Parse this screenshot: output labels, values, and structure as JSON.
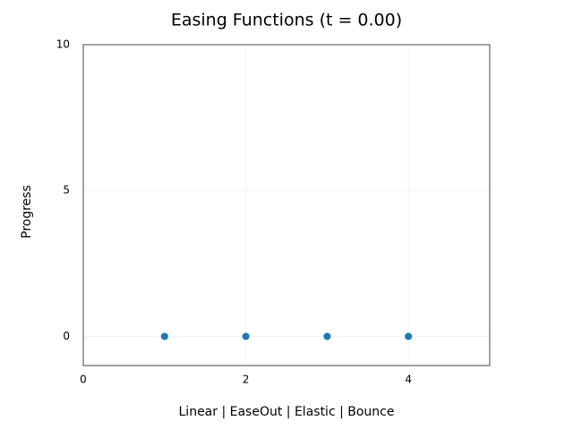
{
  "chart_data": {
    "type": "scatter",
    "title": "Easing Functions (t = 0.00)",
    "x_label": "Linear | EaseOut | Elastic | Bounce",
    "y_label": "Progress",
    "x": [
      1,
      2,
      3,
      4
    ],
    "values": [
      0,
      0,
      0,
      0
    ],
    "color": "#1f77b4",
    "xlim": [
      0,
      5
    ],
    "xticks": [
      0,
      2,
      4
    ],
    "ylim": [
      -1,
      10
    ],
    "yticks": [
      0,
      5,
      10
    ],
    "grid": true
  }
}
